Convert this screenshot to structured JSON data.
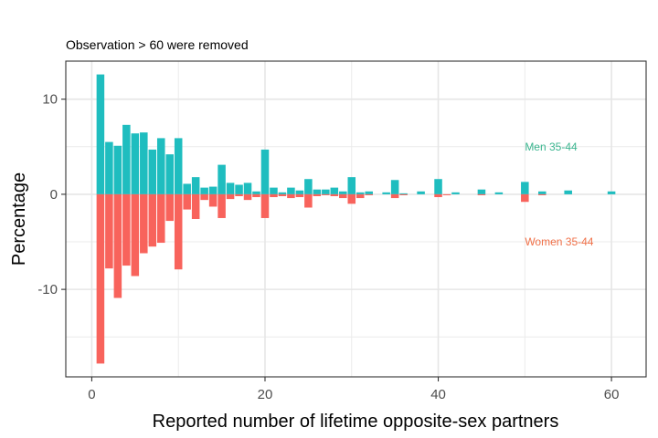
{
  "chart_data": {
    "type": "bar",
    "subtitle": "Observation > 60 were removed",
    "xlabel": "Reported number of lifetime opposite-sex partners",
    "ylabel": "Percentage",
    "xlim": [
      -3,
      64
    ],
    "ylim": [
      -19.2,
      14
    ],
    "x_ticks": [
      0,
      20,
      40,
      60
    ],
    "y_ticks": [
      -10,
      0,
      10
    ],
    "x_tick_labels": [
      "0",
      "20",
      "40",
      "60"
    ],
    "y_tick_labels": [
      "-10",
      "0",
      "10"
    ],
    "grid": true,
    "series": [
      {
        "name": "Men 35-44",
        "color": "#1FBDBF",
        "points": [
          [
            1,
            12.6
          ],
          [
            2,
            5.5
          ],
          [
            3,
            5.1
          ],
          [
            4,
            7.3
          ],
          [
            5,
            6.4
          ],
          [
            6,
            6.5
          ],
          [
            7,
            4.7
          ],
          [
            8,
            5.9
          ],
          [
            9,
            4.2
          ],
          [
            10,
            5.9
          ],
          [
            11,
            1.1
          ],
          [
            12,
            1.8
          ],
          [
            13,
            0.7
          ],
          [
            14,
            0.8
          ],
          [
            15,
            3.1
          ],
          [
            16,
            1.2
          ],
          [
            17,
            1.0
          ],
          [
            18,
            1.2
          ],
          [
            19,
            0.3
          ],
          [
            20,
            4.7
          ],
          [
            21,
            0.7
          ],
          [
            22,
            0.2
          ],
          [
            23,
            0.7
          ],
          [
            24,
            0.4
          ],
          [
            25,
            1.6
          ],
          [
            26,
            0.5
          ],
          [
            27,
            0.5
          ],
          [
            28,
            0.7
          ],
          [
            29,
            0.3
          ],
          [
            30,
            1.8
          ],
          [
            31,
            0.2
          ],
          [
            32,
            0.3
          ],
          [
            34,
            0.2
          ],
          [
            35,
            1.5
          ],
          [
            36,
            0.1
          ],
          [
            38,
            0.3
          ],
          [
            40,
            1.6
          ],
          [
            42,
            0.2
          ],
          [
            45,
            0.5
          ],
          [
            47,
            0.2
          ],
          [
            50,
            1.3
          ],
          [
            52,
            0.3
          ],
          [
            55,
            0.4
          ],
          [
            60,
            0.3
          ]
        ]
      },
      {
        "name": "Women 35-44",
        "color": "#F8635C",
        "points": [
          [
            1,
            -17.8
          ],
          [
            2,
            -7.8
          ],
          [
            3,
            -10.9
          ],
          [
            4,
            -7.5
          ],
          [
            5,
            -8.6
          ],
          [
            6,
            -6.2
          ],
          [
            7,
            -5.5
          ],
          [
            8,
            -5.1
          ],
          [
            9,
            -2.8
          ],
          [
            10,
            -7.9
          ],
          [
            11,
            -1.6
          ],
          [
            12,
            -2.6
          ],
          [
            13,
            -0.6
          ],
          [
            14,
            -1.3
          ],
          [
            15,
            -2.5
          ],
          [
            16,
            -0.5
          ],
          [
            17,
            -0.2
          ],
          [
            18,
            -0.6
          ],
          [
            19,
            -0.3
          ],
          [
            20,
            -2.5
          ],
          [
            21,
            -0.3
          ],
          [
            22,
            -0.2
          ],
          [
            23,
            -0.4
          ],
          [
            24,
            -0.3
          ],
          [
            25,
            -1.4
          ],
          [
            26,
            -0.2
          ],
          [
            27,
            -0.1
          ],
          [
            28,
            -0.2
          ],
          [
            29,
            -0.4
          ],
          [
            30,
            -1.0
          ],
          [
            31,
            -0.4
          ],
          [
            32,
            -0.1
          ],
          [
            35,
            -0.4
          ],
          [
            36,
            -0.1
          ],
          [
            40,
            -0.3
          ],
          [
            41,
            -0.1
          ],
          [
            45,
            -0.1
          ],
          [
            50,
            -0.8
          ],
          [
            52,
            -0.1
          ]
        ]
      }
    ],
    "annotations": [
      {
        "text": "Men 35-44",
        "x": 50,
        "y": 5,
        "color": "#3BB58F"
      },
      {
        "text": "Women 35-44",
        "x": 50,
        "y": -5,
        "color": "#F07048"
      }
    ]
  }
}
